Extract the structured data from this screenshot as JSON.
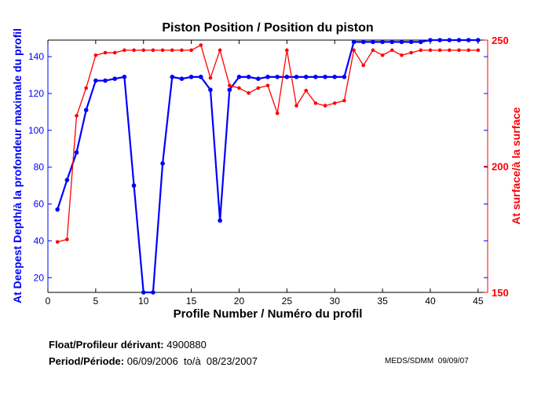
{
  "chart_data": {
    "type": "line",
    "title": "Piston Position / Position du piston",
    "xlabel": "Profile Number / Numéro du profil",
    "ylabel_left": "At Deepest Depth/à la profondeur maximale du profil",
    "ylabel_right": "At surface/à la surface",
    "xlim": [
      0,
      46
    ],
    "ylim_left": [
      12,
      149
    ],
    "ylim_right": [
      150,
      250
    ],
    "xticks": [
      0,
      5,
      10,
      15,
      20,
      25,
      30,
      35,
      40,
      45
    ],
    "yticks_left": [
      20,
      40,
      60,
      80,
      100,
      120,
      140
    ],
    "yticks_right": [
      150,
      200,
      250
    ],
    "x": [
      1,
      2,
      3,
      4,
      5,
      6,
      7,
      8,
      9,
      10,
      11,
      12,
      13,
      14,
      15,
      16,
      17,
      18,
      19,
      20,
      21,
      22,
      23,
      24,
      25,
      26,
      27,
      28,
      29,
      30,
      31,
      32,
      33,
      34,
      35,
      36,
      37,
      38,
      39,
      40,
      41,
      42,
      43,
      44,
      45
    ],
    "series": [
      {
        "name": "At Deepest Depth",
        "axis": "left",
        "color": "#0000ff",
        "values": [
          57,
          73,
          88,
          111,
          127,
          127,
          128,
          129,
          70,
          12,
          12,
          82,
          129,
          128,
          129,
          129,
          122,
          51,
          122,
          129,
          129,
          128,
          129,
          129,
          129,
          129,
          129,
          129,
          129,
          129,
          129,
          148,
          148,
          148,
          148,
          148,
          148,
          148,
          148,
          149,
          149,
          149,
          149,
          149,
          149
        ]
      },
      {
        "name": "At surface",
        "axis": "right",
        "color": "#ff0000",
        "values": [
          170,
          171,
          220,
          231,
          244,
          245,
          245,
          246,
          246,
          246,
          246,
          246,
          246,
          246,
          246,
          248,
          235,
          246,
          232,
          231,
          229,
          231,
          232,
          221,
          246,
          224,
          230,
          225,
          224,
          225,
          226,
          246,
          240,
          246,
          244,
          246,
          244,
          245,
          246,
          246,
          246,
          246,
          246,
          246,
          246
        ]
      }
    ],
    "grid": false
  },
  "footer": {
    "float_label": "Float/Profileur dérivant:",
    "float_value": "4900880",
    "period_label": "Period/Période:",
    "period_value": "06/09/2006  to/à  08/23/2007",
    "credit": "MEDS/SDMM  09/09/07"
  }
}
